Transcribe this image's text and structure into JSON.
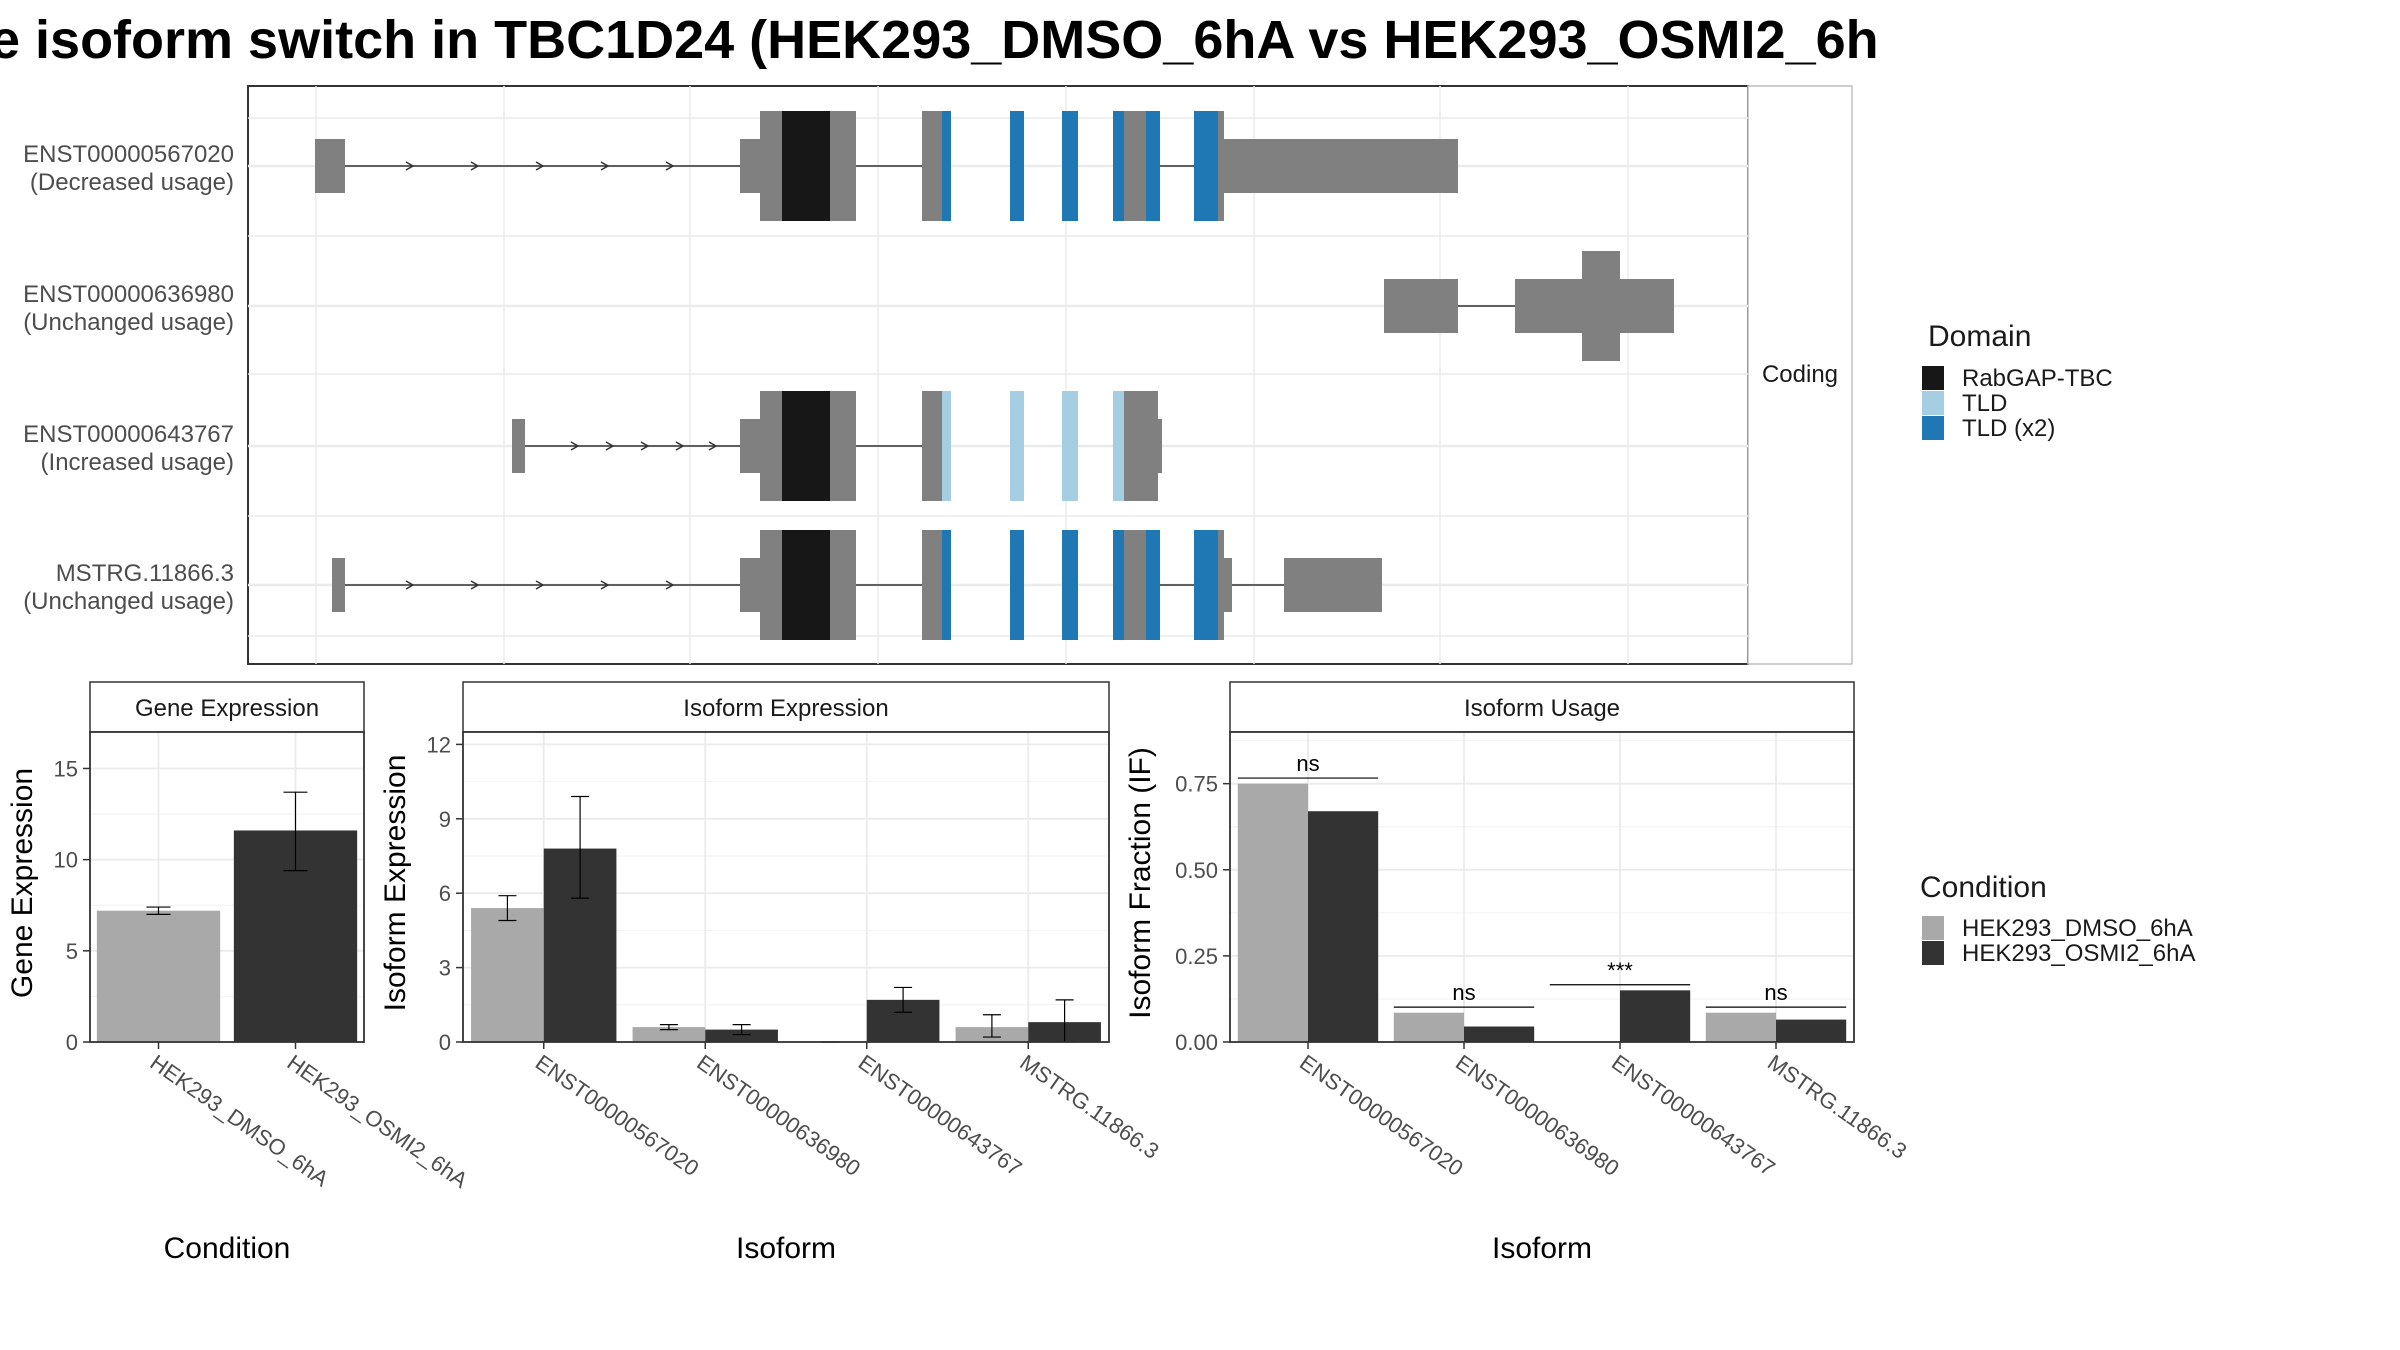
{
  "title": "e isoform switch in TBC1D24 (HEK293_DMSO_6hA vs HEK293_OSMI2_6h",
  "colors": {
    "dmso": "#a9a9a9",
    "osmi": "#333333",
    "utr": "#808080",
    "rabgap": "#171717",
    "tld": "#a6cee3",
    "tld_x2": "#1f78b4"
  },
  "structure_panel": {
    "strip_label": "Coding",
    "transcripts": [
      {
        "id": "ENST00000567020",
        "usage": "(Decreased usage)",
        "row": 0,
        "utr": [
          [
            0.044,
            0.065
          ],
          [
            0.33,
            0.35
          ],
          [
            0.445,
            0.469
          ],
          [
            0.649,
            0.81
          ]
        ],
        "cds": [
          [
            0.35,
            0.366
          ],
          [
            0.449,
            0.465
          ],
          [
            0.586,
            0.588
          ]
        ],
        "domains": [
          {
            "d": "rabgap",
            "s": [
              0.366,
              0.389
            ]
          },
          {
            "d": "rabgap_utr",
            "s": [
              0.389,
              0.407
            ]
          },
          {
            "d": "tld_x2",
            "s": [
              0.465,
              0.471
            ]
          },
          {
            "d": "tld_x2",
            "s": [
              0.513,
              0.522
            ]
          },
          {
            "d": "tld_x2",
            "s": [
              0.548,
              0.558
            ]
          },
          {
            "d": "tld_x2",
            "s": [
              0.583,
              0.589
            ]
          },
          {
            "d": "tld_x2",
            "s": [
              0.603,
              0.613
            ]
          },
          {
            "d": "tld_x2",
            "s": [
              0.633,
              0.646
            ]
          }
        ]
      },
      {
        "id": "ENST00000636980",
        "usage": "(Unchanged usage)",
        "row": 1
      },
      {
        "id": "ENST00000643767",
        "usage": "(Increased usage)",
        "row": 2
      },
      {
        "id": "MSTRG.11866.3",
        "usage": "(Unchanged usage)",
        "row": 3
      }
    ]
  },
  "legends": {
    "domain": {
      "title": "Domain",
      "items": [
        {
          "label": "RabGAP-TBC",
          "color": "#171717"
        },
        {
          "label": "TLD",
          "color": "#a6cee3"
        },
        {
          "label": "TLD (x2)",
          "color": "#1f78b4"
        }
      ]
    },
    "condition": {
      "title": "Condition",
      "items": [
        {
          "label": "HEK293_DMSO_6hA",
          "color": "#a9a9a9"
        },
        {
          "label": "HEK293_OSMI2_6hA",
          "color": "#333333"
        }
      ]
    }
  },
  "chart_data": [
    {
      "type": "bar",
      "panel": "Gene Expression",
      "strip": "Gene Expression",
      "xlabel": "Condition",
      "ylabel": "Gene Expression",
      "ylim": [
        0,
        17
      ],
      "yticks": [
        0,
        5,
        10,
        15
      ],
      "categories": [
        "HEK293_DMSO_6hA",
        "HEK293_OSMI2_6hA"
      ],
      "values": [
        7.2,
        11.6
      ],
      "errors": [
        [
          7.0,
          7.4
        ],
        [
          9.4,
          13.7
        ]
      ]
    },
    {
      "type": "bar",
      "panel": "Isoform Expression",
      "strip": "Isoform Expression",
      "xlabel": "Isoform",
      "ylabel": "Isoform Expression",
      "ylim": [
        0,
        12.5
      ],
      "yticks": [
        0,
        3,
        6,
        9,
        12
      ],
      "categories": [
        "ENST00000567020",
        "ENST00000636980",
        "ENST00000643767",
        "MSTRG.11866.3"
      ],
      "series": [
        {
          "name": "HEK293_DMSO_6hA",
          "values": [
            5.4,
            0.6,
            0.0,
            0.6
          ],
          "errors": [
            [
              4.9,
              5.9
            ],
            [
              0.5,
              0.7
            ],
            [
              0.0,
              0.0
            ],
            [
              0.2,
              1.1
            ]
          ]
        },
        {
          "name": "HEK293_OSMI2_6hA",
          "values": [
            7.8,
            0.5,
            1.7,
            0.8
          ],
          "errors": [
            [
              5.8,
              9.9
            ],
            [
              0.3,
              0.7
            ],
            [
              1.2,
              2.2
            ],
            [
              0.0,
              1.7
            ]
          ]
        }
      ]
    },
    {
      "type": "bar",
      "panel": "Isoform Usage",
      "strip": "Isoform Usage",
      "xlabel": "Isoform",
      "ylabel": "Isoform Fraction (IF)",
      "ylim": [
        0,
        0.9
      ],
      "yticks": [
        "0.00",
        "0.25",
        "0.50",
        "0.75"
      ],
      "categories": [
        "ENST00000567020",
        "ENST00000636980",
        "ENST00000643767",
        "MSTRG.11866.3"
      ],
      "series": [
        {
          "name": "HEK293_DMSO_6hA",
          "values": [
            0.75,
            0.085,
            0.0,
            0.085
          ]
        },
        {
          "name": "HEK293_OSMI2_6hA",
          "values": [
            0.67,
            0.045,
            0.15,
            0.065
          ]
        }
      ],
      "significance": [
        "ns",
        "ns",
        "***",
        "ns"
      ]
    }
  ]
}
